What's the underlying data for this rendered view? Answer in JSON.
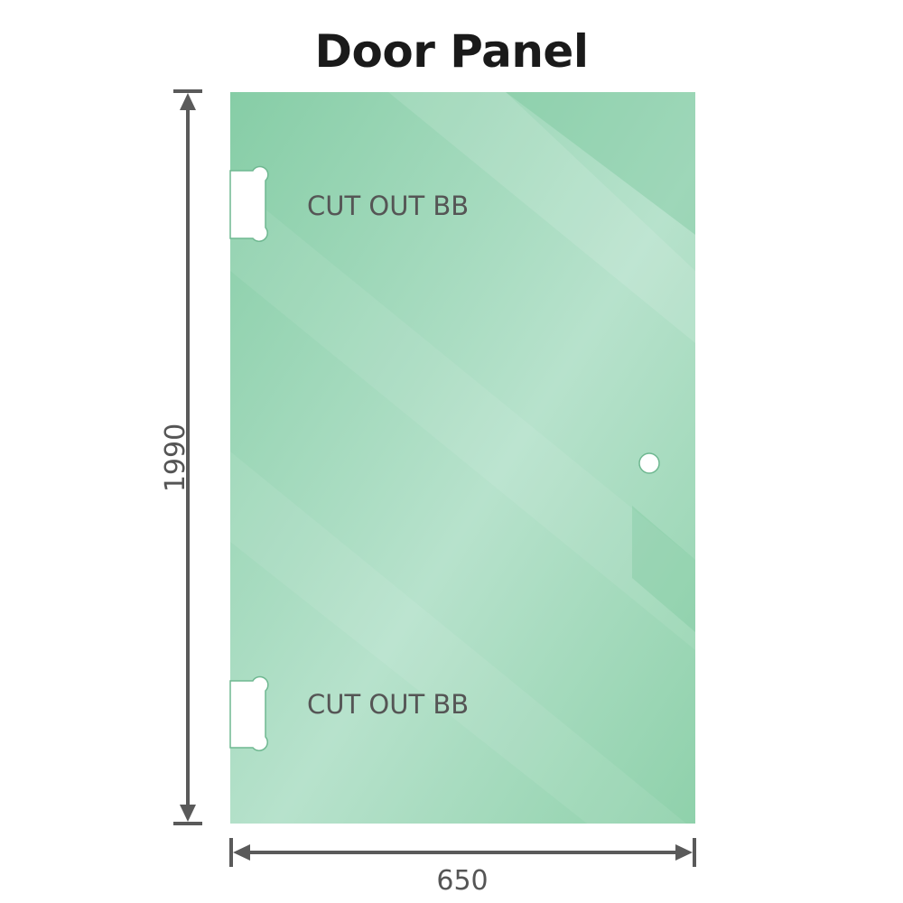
{
  "title": "Door Panel",
  "panel": {
    "color": "#8ccfa8",
    "cutout_labels": [
      "CUT OUT BB",
      "CUT OUT BB"
    ]
  },
  "dimensions": {
    "height": "1990",
    "width": "650"
  },
  "colors": {
    "dimension_line": "#5a5a5a",
    "label_text": "#555555"
  }
}
